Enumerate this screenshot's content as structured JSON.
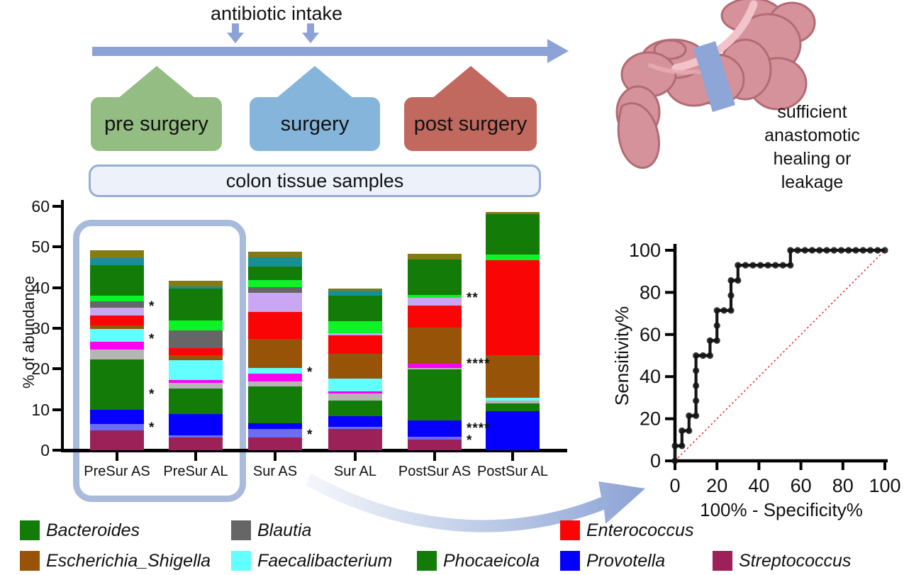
{
  "header": {
    "antibiotic_label": "antibiotic intake",
    "stages": [
      {
        "label": "pre surgery",
        "color": "#93bd82"
      },
      {
        "label": "surgery",
        "color": "#85b5da"
      },
      {
        "label": "post surgery",
        "color": "#c1685f"
      }
    ],
    "samples_label": "colon tissue samples"
  },
  "outcome": {
    "lines": [
      "sufficient",
      "anastomotic",
      "healing or",
      "leakage"
    ]
  },
  "legend": {
    "rows": [
      [
        {
          "label": "Bacteroides",
          "color": "#137c08"
        },
        {
          "label": "Blautia",
          "color": "#666666"
        },
        {
          "label": "Enterococcus",
          "color": "#fa0505"
        }
      ],
      [
        {
          "label": "Escherichia_Shigella",
          "color": "#975408"
        },
        {
          "label": "Faecalibacterium",
          "color": "#63fefe"
        },
        {
          "label": "Phocaeicola",
          "color": "#137c08"
        },
        {
          "label": "Provotella",
          "color": "#0500fd"
        },
        {
          "label": "Streptococcus",
          "color": "#9b2158"
        }
      ]
    ]
  },
  "chart_data": [
    {
      "type": "stacked_bar",
      "title": "",
      "ylabel": "% of abundance",
      "ylim": [
        0,
        60
      ],
      "yticks": [
        0,
        10,
        20,
        30,
        40,
        50,
        60
      ],
      "categories": [
        "PreSur AS",
        "PreSur AL",
        "Sur AS",
        "Sur AL",
        "PostSur AS",
        "PostSur AL"
      ],
      "series": [
        {
          "name": "Streptococcus",
          "color": "#9b2158",
          "values": [
            4.9,
            3.1,
            3.2,
            5.2,
            2.6,
            0
          ]
        },
        {
          "name": "other_periwinkle",
          "color": "#6b6ef5",
          "values": [
            1.6,
            0.6,
            2.0,
            0.6,
            0.7,
            0
          ]
        },
        {
          "name": "Provotella",
          "color": "#0500fd",
          "values": [
            3.5,
            5.2,
            1.5,
            2.6,
            4.0,
            9.6
          ]
        },
        {
          "name": "Phocaeicola",
          "color": "#137c08",
          "values": [
            12.4,
            6.2,
            9.0,
            3.8,
            12.5,
            1.9
          ]
        },
        {
          "name": "other_lightgray",
          "color": "#b5b5b5",
          "values": [
            2.3,
            1.5,
            1.2,
            1.8,
            0.4,
            0.7
          ]
        },
        {
          "name": "other_magenta",
          "color": "#fb02f3",
          "values": [
            2.0,
            0.6,
            2.0,
            0.4,
            1.0,
            0
          ]
        },
        {
          "name": "Faecalibacterium",
          "color": "#63fefe",
          "values": [
            3.2,
            4.9,
            1.4,
            3.3,
            0,
            0.7
          ]
        },
        {
          "name": "Escherichia_Shigella",
          "color": "#975408",
          "values": [
            0.8,
            1.2,
            7.0,
            6.0,
            8.9,
            10.4
          ]
        },
        {
          "name": "Enterococcus",
          "color": "#fa0505",
          "values": [
            2.4,
            1.8,
            6.7,
            4.5,
            5.4,
            23.4
          ]
        },
        {
          "name": "other_lavender",
          "color": "#c9a7f2",
          "values": [
            1.9,
            0,
            4.7,
            0.6,
            2.0,
            0
          ]
        },
        {
          "name": "Blautia",
          "color": "#666666",
          "values": [
            1.6,
            4.4,
            1.4,
            0,
            0,
            0
          ]
        },
        {
          "name": "other_brightgreen",
          "color": "#0cf425",
          "values": [
            1.4,
            2.5,
            1.8,
            2.9,
            0.7,
            1.4
          ]
        },
        {
          "name": "Bacteroides",
          "color": "#137c08",
          "values": [
            7.6,
            7.7,
            3.2,
            6.4,
            8.7,
            9.9
          ]
        },
        {
          "name": "other_teal",
          "color": "#178f96",
          "values": [
            1.7,
            0.6,
            2.3,
            1.2,
            0,
            0
          ]
        },
        {
          "name": "other_olive",
          "color": "#847c12",
          "values": [
            1.9,
            1.4,
            1.4,
            0.4,
            1.5,
            0.6
          ]
        }
      ],
      "annotations": [
        {
          "category": "PreSur AS",
          "y": 35.4,
          "text": "*"
        },
        {
          "category": "PreSur AS",
          "y": 27.4,
          "text": "*"
        },
        {
          "category": "PreSur AS",
          "y": 13.8,
          "text": "*"
        },
        {
          "category": "PreSur AS",
          "y": 5.6,
          "text": "*"
        },
        {
          "category": "Sur AS",
          "y": 19.2,
          "text": "*"
        },
        {
          "category": "Sur AS",
          "y": 3.8,
          "text": "*"
        },
        {
          "category": "PostSur AS",
          "y": 37.5,
          "text": "**"
        },
        {
          "category": "PostSur AS",
          "y": 21.2,
          "text": "****"
        },
        {
          "category": "PostSur AS",
          "y": 5.4,
          "text": "****"
        },
        {
          "category": "PostSur AS",
          "y": 2.4,
          "text": "*"
        }
      ]
    },
    {
      "type": "line",
      "name": "ROC curve",
      "xlabel": "100% - Specificity%",
      "ylabel": "Sensitivity%",
      "xlim": [
        0,
        100
      ],
      "ylim": [
        0,
        100
      ],
      "xticks": [
        0,
        20,
        40,
        60,
        80,
        100
      ],
      "yticks": [
        0,
        20,
        40,
        60,
        80,
        100
      ],
      "steps": [
        [
          0,
          0
        ],
        [
          0,
          7.1
        ],
        [
          3.3,
          7.1
        ],
        [
          3.3,
          14.3
        ],
        [
          6.7,
          14.3
        ],
        [
          6.7,
          21.4
        ],
        [
          10,
          21.4
        ],
        [
          10,
          50
        ],
        [
          16.7,
          50
        ],
        [
          16.7,
          57.1
        ],
        [
          20,
          57.1
        ],
        [
          20,
          71.4
        ],
        [
          26.7,
          71.4
        ],
        [
          26.7,
          85.7
        ],
        [
          30,
          85.7
        ],
        [
          30,
          92.9
        ],
        [
          55,
          92.9
        ],
        [
          55,
          100
        ],
        [
          100,
          100
        ]
      ],
      "line_color": "#161616",
      "marker_color": "#161616",
      "diagonal": {
        "color": "#f23b3b",
        "from": [
          0,
          0
        ],
        "to": [
          100,
          100
        ]
      }
    }
  ]
}
